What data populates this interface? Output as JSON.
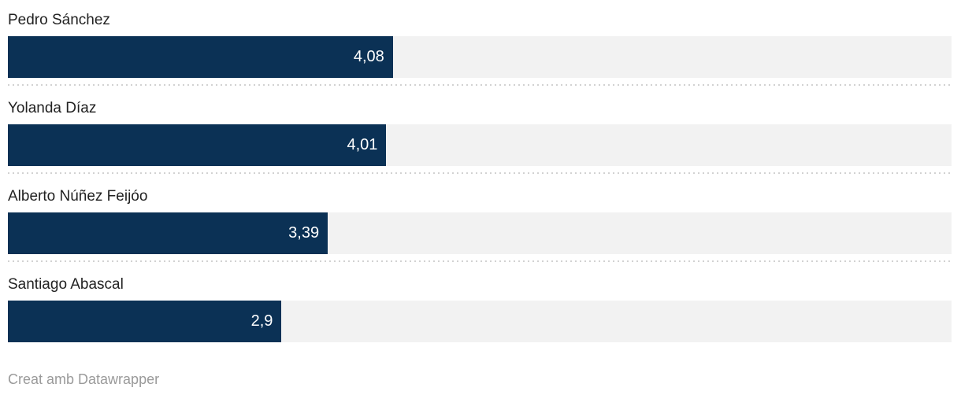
{
  "chart_data": {
    "type": "bar",
    "orientation": "horizontal",
    "categories": [
      "Pedro Sánchez",
      "Yolanda Díaz",
      "Alberto Núñez Feijóo",
      "Santiago Abascal"
    ],
    "values": [
      4.08,
      4.01,
      3.39,
      2.9
    ],
    "value_labels": [
      "4,08",
      "4,01",
      "3,39",
      "2,9"
    ],
    "xlim": [
      0,
      10
    ],
    "grid": false,
    "legend": false,
    "title": "",
    "xlabel": "",
    "ylabel": "",
    "colors": {
      "bar": "#0b3155",
      "track": "#f2f2f2",
      "value_text": "#ffffff",
      "label_text": "#222222",
      "separator": "#d2d2d2"
    }
  },
  "footer": {
    "attribution": "Creat amb Datawrapper"
  }
}
